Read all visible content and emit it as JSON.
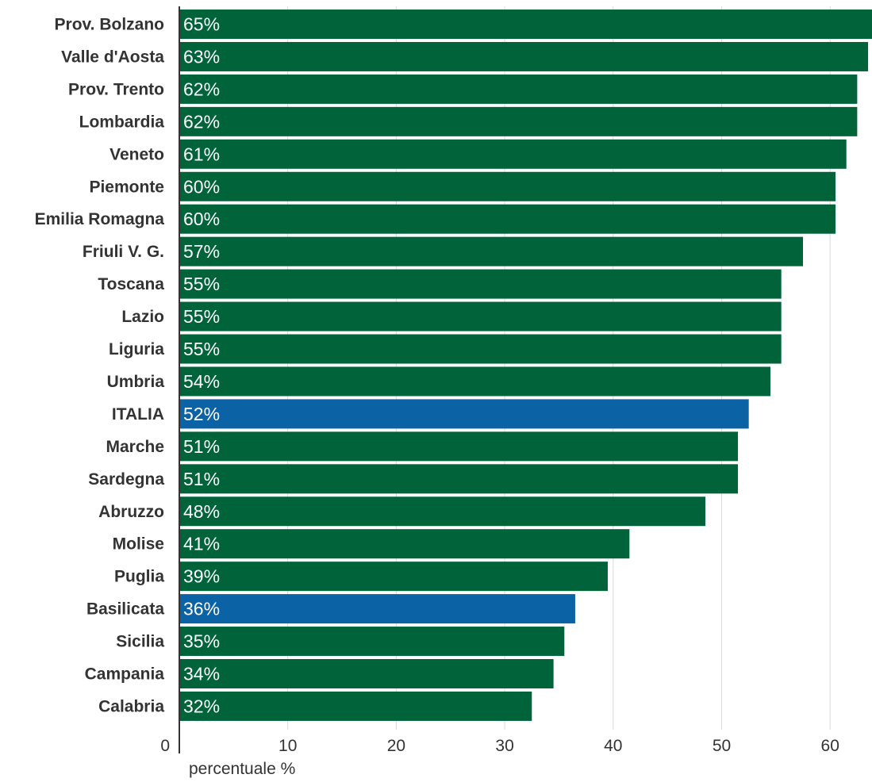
{
  "chart_data": {
    "type": "bar",
    "orientation": "horizontal",
    "categories": [
      "Prov. Bolzano",
      "Valle d'Aosta",
      "Prov. Trento",
      "Lombardia",
      "Veneto",
      "Piemonte",
      "Emilia Romagna",
      "Friuli V. G.",
      "Toscana",
      "Lazio",
      "Liguria",
      "Umbria",
      "ITALIA",
      "Marche",
      "Sardegna",
      "Abruzzo",
      "Molise",
      "Puglia",
      "Basilicata",
      "Sicilia",
      "Campania",
      "Calabria"
    ],
    "values": [
      65,
      63.5,
      62.5,
      62.5,
      61.5,
      60.5,
      60.5,
      57.5,
      55.5,
      55.5,
      55.5,
      54.5,
      52.5,
      51.5,
      51.5,
      48.5,
      41.5,
      39.5,
      36.5,
      35.5,
      34.5,
      32.5
    ],
    "data_labels": [
      "65%",
      "63%",
      "62%",
      "62%",
      "61%",
      "60%",
      "60%",
      "57%",
      "55%",
      "55%",
      "55%",
      "54%",
      "52%",
      "51%",
      "51%",
      "48%",
      "41%",
      "39%",
      "36%",
      "35%",
      "34%",
      "32%"
    ],
    "highlighted": [
      "ITALIA",
      "Basilicata"
    ],
    "colors": {
      "default_bar": "#00633a",
      "highlight_bar": "#0b62a4",
      "label_text": "#333333",
      "value_text": "#ffffff",
      "grid": "#d9d9d9",
      "axis": "#333333"
    },
    "xaxis": {
      "ticks": [
        0,
        10,
        20,
        30,
        40,
        50,
        60
      ],
      "tick_labels": [
        "0",
        "10",
        "20",
        "30",
        "40",
        "50",
        "60"
      ],
      "range": [
        0,
        64
      ],
      "label": "percentuale %"
    },
    "grid": true
  }
}
